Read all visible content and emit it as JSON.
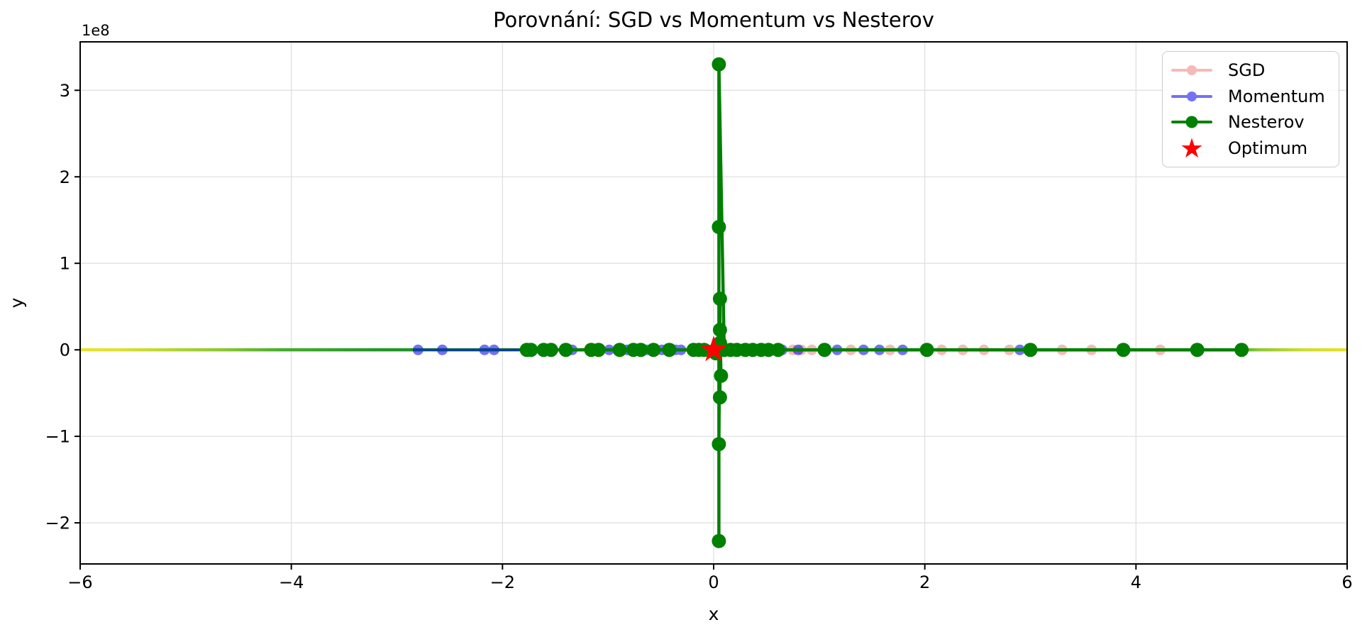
{
  "chart_data": {
    "type": "line",
    "title": "Porovnání: SGD vs Momentum vs Nesterov",
    "xlabel": "x",
    "ylabel": "y",
    "y_offset_label": "1e8",
    "y_values_unit": "1e8",
    "xlim": [
      -6,
      6
    ],
    "ylim": [
      -2.475,
      3.56
    ],
    "xticks": [
      -6,
      -4,
      -2,
      0,
      2,
      4,
      6
    ],
    "xtick_labels": [
      "−6",
      "−4",
      "−2",
      "0",
      "2",
      "4",
      "6"
    ],
    "yticks": [
      -2,
      -1,
      0,
      1,
      2,
      3
    ],
    "ytick_labels": [
      "−2",
      "−1",
      "0",
      "1",
      "2",
      "3"
    ],
    "grid": true,
    "grid_color": "#e0e0e0",
    "legend_position": "upper right",
    "background_line": {
      "description": "objective-function line along y=0 colored with yellow-green gradient",
      "y": 0,
      "x_span": [
        -6,
        6
      ],
      "stroke_width": 4.5,
      "stops": [
        [
          0,
          "#e8e32f"
        ],
        [
          3,
          "#dfe130"
        ],
        [
          7,
          "#b6d631"
        ],
        [
          11,
          "#8cc830"
        ],
        [
          16,
          "#44ad2b"
        ],
        [
          24,
          "#1f9626"
        ],
        [
          50,
          "#0f8418"
        ],
        [
          80,
          "#1f9626"
        ],
        [
          91,
          "#2fa028"
        ],
        [
          93,
          "#8cc830"
        ],
        [
          96.5,
          "#cedd2f"
        ],
        [
          100,
          "#e6e224"
        ]
      ]
    },
    "series": [
      {
        "name": "SGD",
        "color": "#f08080",
        "alpha": 0.55,
        "line_width": 3.5,
        "marker": "circle",
        "marker_radius": 7.5,
        "points": [
          [
            -0.12,
            0
          ],
          [
            -0.05,
            0
          ],
          [
            0.1,
            0
          ],
          [
            0.25,
            0
          ],
          [
            0.4,
            0
          ],
          [
            0.75,
            0
          ],
          [
            0.83,
            0
          ],
          [
            0.93,
            0
          ],
          [
            1.3,
            0
          ],
          [
            1.67,
            0
          ],
          [
            2.16,
            0
          ],
          [
            2.36,
            0
          ],
          [
            2.56,
            0
          ],
          [
            2.8,
            0
          ],
          [
            3.3,
            0
          ],
          [
            3.58,
            0
          ],
          [
            4.23,
            0
          ]
        ]
      },
      {
        "name": "Momentum",
        "color": "#0000ee",
        "alpha": 0.55,
        "line_width": 3.5,
        "marker": "circle",
        "marker_radius": 7.5,
        "points": [
          [
            -2.8,
            0
          ],
          [
            -2.57,
            0
          ],
          [
            -2.17,
            0
          ],
          [
            -2.08,
            0
          ],
          [
            -1.34,
            0
          ],
          [
            -0.99,
            0
          ],
          [
            -0.91,
            0
          ],
          [
            -0.82,
            0
          ],
          [
            -0.63,
            0
          ],
          [
            -0.49,
            0
          ],
          [
            -0.36,
            0
          ],
          [
            -0.31,
            0
          ],
          [
            -0.15,
            0
          ],
          [
            -0.05,
            0
          ],
          [
            0.08,
            0
          ],
          [
            0.2,
            0
          ],
          [
            0.35,
            0
          ],
          [
            0.5,
            0
          ],
          [
            0.65,
            0
          ],
          [
            0.8,
            0
          ],
          [
            1.17,
            0
          ],
          [
            1.42,
            0
          ],
          [
            1.57,
            0
          ],
          [
            1.79,
            0
          ],
          [
            2.9,
            0
          ]
        ]
      },
      {
        "name": "Nesterov",
        "color": "#008000",
        "alpha": 1,
        "line_width": 4.5,
        "marker": "circle",
        "marker_radius": 10,
        "points": [
          [
            5.0,
            0
          ],
          [
            4.58,
            0
          ],
          [
            3.88,
            0
          ],
          [
            3.0,
            0
          ],
          [
            2.02,
            0
          ],
          [
            1.05,
            0
          ],
          [
            0.61,
            0
          ],
          [
            0.52,
            0
          ],
          [
            0.45,
            0
          ],
          [
            0.37,
            0
          ],
          [
            0.3,
            0
          ],
          [
            0.22,
            0
          ],
          [
            0.16,
            0
          ],
          [
            0.1,
            0
          ],
          [
            0.05,
            3.3
          ],
          [
            0.05,
            -2.21
          ],
          [
            0.05,
            1.42
          ],
          [
            0.05,
            -1.09
          ],
          [
            0.06,
            0.59
          ],
          [
            0.06,
            -0.55
          ],
          [
            0.06,
            0.23
          ],
          [
            0.07,
            -0.3
          ],
          [
            0.06,
            0.08
          ],
          [
            0.02,
            -0.04
          ],
          [
            -0.09,
            0
          ],
          [
            -0.14,
            0
          ],
          [
            -0.19,
            0
          ],
          [
            -0.42,
            0
          ],
          [
            -0.57,
            0
          ],
          [
            -0.69,
            0
          ],
          [
            -0.76,
            0
          ],
          [
            -0.89,
            0
          ],
          [
            -1.09,
            0
          ],
          [
            -1.16,
            0
          ],
          [
            -1.4,
            0
          ],
          [
            -1.54,
            0
          ],
          [
            -1.61,
            0
          ],
          [
            -1.73,
            0
          ],
          [
            -1.77,
            0
          ]
        ]
      },
      {
        "name": "Optimum",
        "color": "#ff0000",
        "alpha": 1,
        "marker": "star",
        "marker_radius": 20,
        "points": [
          [
            0,
            0
          ]
        ]
      }
    ]
  },
  "legend": {
    "items": [
      {
        "label": "SGD",
        "color": "#f08080",
        "alpha": 0.55,
        "marker": "line-dot"
      },
      {
        "label": "Momentum",
        "color": "#0000ee",
        "alpha": 0.55,
        "marker": "line-dot"
      },
      {
        "label": "Nesterov",
        "color": "#008000",
        "alpha": 1,
        "marker": "line-dot"
      },
      {
        "label": "Optimum",
        "color": "#ff0000",
        "alpha": 1,
        "marker": "star"
      }
    ]
  }
}
